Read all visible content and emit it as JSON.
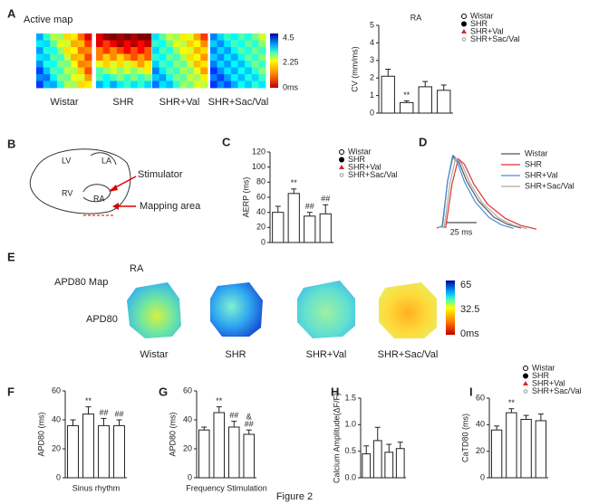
{
  "panel_labels": [
    "A",
    "B",
    "C",
    "D",
    "E",
    "F",
    "G",
    "H",
    "I"
  ],
  "panel_a": {
    "title": "Active map",
    "colorbar_ticks": [
      "4.5",
      "2.25",
      "0ms"
    ],
    "map_labels": [
      "Wistar",
      "SHR",
      "SHR+Val",
      "SHR+Sac/Val"
    ]
  },
  "panel_b": {
    "chambers": [
      "LV",
      "LA",
      "RV",
      "RA"
    ],
    "stimulator": "Stimulator",
    "mapping_area": "Mapping area"
  },
  "panel_d": {
    "traces": [
      {
        "name": "Wistar",
        "color": "#555555"
      },
      {
        "name": "SHR",
        "color": "#e03030"
      },
      {
        "name": "SHR+Val",
        "color": "#4a8fd8"
      },
      {
        "name": "SHR+Sac/Val",
        "color": "#aaaaaa"
      }
    ],
    "scale_bar": "25 ms"
  },
  "panel_e": {
    "title": "APD80 Map",
    "region": "RA",
    "row_label": "APD80",
    "colorbar_ticks": [
      "65",
      "32.5",
      "0ms"
    ],
    "map_labels": [
      "Wistar",
      "SHR",
      "SHR+Val",
      "SHR+Sac/Val"
    ]
  },
  "caption": "Figure 2",
  "chart_data": [
    {
      "type": "bar",
      "title": "RA",
      "ylabel": "CV (mm/ms)",
      "categories": [
        "Wistar",
        "SHR",
        "SHR+Val",
        "SHR+Sac/Val"
      ],
      "values": [
        2.1,
        0.6,
        1.5,
        1.3
      ],
      "errors": [
        0.4,
        0.1,
        0.3,
        0.3
      ],
      "sig_labels": [
        null,
        "**",
        null,
        null
      ],
      "marker_colors": [
        "#000000",
        "#000000",
        "#d62728",
        "#999999"
      ],
      "ylim": [
        0,
        5
      ],
      "yticks": [
        0,
        1,
        2,
        3,
        4,
        5
      ]
    },
    {
      "type": "bar",
      "ylabel": "AERP (ms)",
      "categories": [
        "Wistar",
        "SHR",
        "SHR+Val",
        "SHR+Sac/Val"
      ],
      "values": [
        40,
        65,
        35,
        38
      ],
      "errors": [
        8,
        6,
        5,
        12
      ],
      "sig_labels": [
        null,
        "**",
        "##",
        "##"
      ],
      "marker_colors": [
        "#000000",
        "#000000",
        "#d62728",
        "#999999"
      ],
      "ylim": [
        0,
        120
      ],
      "yticks": [
        0,
        20,
        40,
        60,
        80,
        100,
        120
      ]
    },
    {
      "type": "bar",
      "ylabel": "APD80 (ms)",
      "xlabel": "Sinus rhythm",
      "values": [
        36,
        44,
        36,
        36
      ],
      "errors": [
        4,
        5,
        5,
        4
      ],
      "sig_labels": [
        null,
        "**",
        "##",
        "##"
      ],
      "ylim": [
        0,
        60
      ],
      "yticks": [
        0,
        20,
        40,
        60
      ]
    },
    {
      "type": "bar",
      "ylabel": "APD80 (ms)",
      "xlabel": "Frequency Stimulation",
      "values": [
        33,
        45,
        35,
        30
      ],
      "errors": [
        2,
        4,
        4,
        3
      ],
      "sig_labels": [
        null,
        "**",
        "##",
        "##"
      ],
      "sig2_labels": [
        null,
        null,
        null,
        "&"
      ],
      "ylim": [
        0,
        60
      ],
      "yticks": [
        0,
        20,
        40,
        60
      ]
    },
    {
      "type": "bar",
      "ylabel": "Calcium Amplitude(ΔF/F)",
      "values": [
        0.45,
        0.7,
        0.48,
        0.55
      ],
      "errors": [
        0.15,
        0.25,
        0.15,
        0.12
      ],
      "ylim": [
        0,
        1.5
      ],
      "yticks": [
        {
          "value": 0,
          "label": "0.0"
        },
        {
          "value": 0.5,
          "label": "0.5"
        },
        {
          "value": 1,
          "label": "1.0"
        },
        {
          "value": 1.5,
          "label": "1.5"
        }
      ]
    },
    {
      "type": "bar",
      "ylabel": "CaTD80 (ms)",
      "categories": [
        "Wistar",
        "SHR",
        "SHR+Val",
        "SHR+Sac/Val"
      ],
      "values": [
        36,
        49,
        44,
        43
      ],
      "errors": [
        3,
        3,
        3,
        5
      ],
      "sig_labels": [
        null,
        "**",
        null,
        null
      ],
      "marker_colors": [
        "#000000",
        "#000000",
        "#d62728",
        "#999999"
      ],
      "ylim": [
        0,
        60
      ],
      "yticks": [
        0,
        20,
        40,
        60
      ]
    }
  ]
}
